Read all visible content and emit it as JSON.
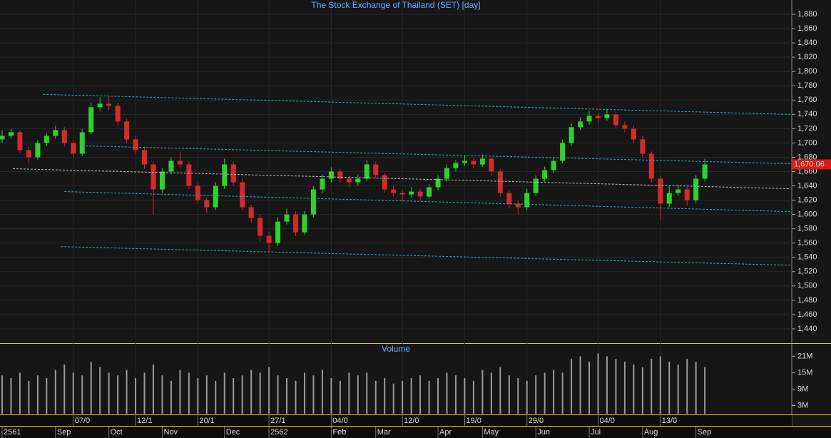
{
  "chart_data": {
    "type": "candlestick",
    "title": "The Stock Exchange of Thailand (SET) [day]",
    "volume_title": "Volume",
    "up_color": "#2fd12f",
    "down_color": "#d42a2a",
    "candles": [
      [
        1705,
        1718,
        1700,
        1710
      ],
      [
        1710,
        1720,
        1706,
        1715
      ],
      [
        1715,
        1718,
        1686,
        1690
      ],
      [
        1690,
        1694,
        1672,
        1680
      ],
      [
        1680,
        1704,
        1677,
        1700
      ],
      [
        1700,
        1714,
        1696,
        1710
      ],
      [
        1710,
        1724,
        1706,
        1718
      ],
      [
        1718,
        1722,
        1695,
        1700
      ],
      [
        1700,
        1704,
        1680,
        1685
      ],
      [
        1685,
        1720,
        1682,
        1715
      ],
      [
        1715,
        1756,
        1712,
        1750
      ],
      [
        1750,
        1764,
        1745,
        1755
      ],
      [
        1755,
        1765,
        1746,
        1752
      ],
      [
        1752,
        1756,
        1725,
        1730
      ],
      [
        1730,
        1734,
        1700,
        1705
      ],
      [
        1705,
        1710,
        1685,
        1690
      ],
      [
        1690,
        1694,
        1664,
        1670
      ],
      [
        1670,
        1674,
        1600,
        1635
      ],
      [
        1635,
        1665,
        1630,
        1660
      ],
      [
        1660,
        1680,
        1656,
        1675
      ],
      [
        1675,
        1688,
        1665,
        1670
      ],
      [
        1670,
        1674,
        1636,
        1640
      ],
      [
        1640,
        1644,
        1615,
        1620
      ],
      [
        1620,
        1624,
        1602,
        1610
      ],
      [
        1610,
        1645,
        1606,
        1640
      ],
      [
        1640,
        1678,
        1636,
        1670
      ],
      [
        1670,
        1674,
        1640,
        1645
      ],
      [
        1645,
        1650,
        1605,
        1610
      ],
      [
        1610,
        1614,
        1588,
        1595
      ],
      [
        1595,
        1600,
        1562,
        1570
      ],
      [
        1570,
        1576,
        1548,
        1560
      ],
      [
        1560,
        1596,
        1556,
        1590
      ],
      [
        1590,
        1608,
        1586,
        1600
      ],
      [
        1600,
        1604,
        1570,
        1575
      ],
      [
        1575,
        1605,
        1571,
        1600
      ],
      [
        1600,
        1640,
        1596,
        1635
      ],
      [
        1635,
        1656,
        1630,
        1650
      ],
      [
        1650,
        1666,
        1645,
        1660
      ],
      [
        1660,
        1664,
        1645,
        1650
      ],
      [
        1650,
        1654,
        1638,
        1645
      ],
      [
        1645,
        1656,
        1640,
        1650
      ],
      [
        1650,
        1676,
        1646,
        1670
      ],
      [
        1670,
        1674,
        1650,
        1655
      ],
      [
        1655,
        1658,
        1630,
        1635
      ],
      [
        1635,
        1640,
        1625,
        1630
      ],
      [
        1630,
        1634,
        1618,
        1628
      ],
      [
        1628,
        1638,
        1624,
        1632
      ],
      [
        1632,
        1636,
        1620,
        1625
      ],
      [
        1625,
        1642,
        1622,
        1638
      ],
      [
        1638,
        1655,
        1634,
        1650
      ],
      [
        1650,
        1670,
        1646,
        1665
      ],
      [
        1665,
        1676,
        1660,
        1672
      ],
      [
        1672,
        1682,
        1668,
        1675
      ],
      [
        1675,
        1679,
        1665,
        1670
      ],
      [
        1670,
        1684,
        1666,
        1678
      ],
      [
        1678,
        1680,
        1655,
        1660
      ],
      [
        1660,
        1664,
        1625,
        1630
      ],
      [
        1630,
        1634,
        1608,
        1615
      ],
      [
        1615,
        1620,
        1600,
        1610
      ],
      [
        1610,
        1636,
        1606,
        1630
      ],
      [
        1630,
        1655,
        1626,
        1650
      ],
      [
        1650,
        1667,
        1646,
        1662
      ],
      [
        1662,
        1680,
        1658,
        1675
      ],
      [
        1675,
        1705,
        1672,
        1700
      ],
      [
        1700,
        1727,
        1696,
        1722
      ],
      [
        1722,
        1736,
        1718,
        1730
      ],
      [
        1730,
        1745,
        1726,
        1738
      ],
      [
        1738,
        1742,
        1728,
        1735
      ],
      [
        1735,
        1748,
        1731,
        1740
      ],
      [
        1740,
        1744,
        1720,
        1725
      ],
      [
        1725,
        1730,
        1715,
        1720
      ],
      [
        1720,
        1724,
        1700,
        1705
      ],
      [
        1705,
        1710,
        1680,
        1685
      ],
      [
        1685,
        1688,
        1645,
        1650
      ],
      [
        1650,
        1654,
        1592,
        1615
      ],
      [
        1615,
        1640,
        1610,
        1630
      ],
      [
        1630,
        1642,
        1626,
        1635
      ],
      [
        1635,
        1638,
        1612,
        1620
      ],
      [
        1620,
        1655,
        1616,
        1650
      ],
      [
        1650,
        1678,
        1646,
        1670.06
      ]
    ],
    "date_labels": [
      null,
      null,
      null,
      null,
      null,
      null,
      null,
      null,
      "07/0",
      null,
      null,
      null,
      null,
      null,
      null,
      "12/1",
      null,
      null,
      null,
      null,
      null,
      null,
      "20/1",
      null,
      null,
      null,
      null,
      null,
      null,
      null,
      "27/1",
      null,
      null,
      null,
      null,
      null,
      null,
      "04/0",
      null,
      null,
      null,
      null,
      null,
      null,
      null,
      "12/0",
      null,
      null,
      null,
      null,
      null,
      null,
      "19/0",
      null,
      null,
      null,
      null,
      null,
      null,
      "29/0",
      null,
      null,
      null,
      null,
      null,
      null,
      null,
      "04/0",
      null,
      null,
      null,
      null,
      null,
      null,
      "13/0",
      null,
      null,
      null,
      null,
      null
    ],
    "month_labels": [
      "2561",
      null,
      null,
      null,
      null,
      null,
      "Sep",
      null,
      null,
      null,
      null,
      null,
      "Oct",
      null,
      null,
      null,
      null,
      null,
      "Nov",
      null,
      null,
      null,
      null,
      null,
      null,
      "Dec",
      null,
      null,
      null,
      null,
      "2562",
      null,
      null,
      null,
      null,
      null,
      null,
      "Feb",
      null,
      null,
      null,
      null,
      "Mar",
      null,
      null,
      null,
      null,
      null,
      null,
      "Apr",
      null,
      null,
      null,
      null,
      "May",
      null,
      null,
      null,
      null,
      null,
      "Jun",
      null,
      null,
      null,
      null,
      null,
      "Jul",
      null,
      null,
      null,
      null,
      null,
      "Aug",
      null,
      null,
      null,
      null,
      null,
      "Sep",
      null
    ],
    "ylim": [
      1420,
      1900
    ],
    "yticks": [
      {
        "value": 1440,
        "label": "1,440"
      },
      {
        "value": 1460,
        "label": "1,460"
      },
      {
        "value": 1480,
        "label": "1,480"
      },
      {
        "value": 1500,
        "label": "1,500"
      },
      {
        "value": 1520,
        "label": "1,520"
      },
      {
        "value": 1540,
        "label": "1,540"
      },
      {
        "value": 1560,
        "label": "1,560"
      },
      {
        "value": 1580,
        "label": "1,580"
      },
      {
        "value": 1600,
        "label": "1,600"
      },
      {
        "value": 1620,
        "label": "1,620"
      },
      {
        "value": 1640,
        "label": "1,640"
      },
      {
        "value": 1660,
        "label": "1,660"
      },
      {
        "value": 1680,
        "label": "1,680"
      },
      {
        "value": 1700,
        "label": "1,700"
      },
      {
        "value": 1720,
        "label": "1,720"
      },
      {
        "value": 1740,
        "label": "1,740"
      },
      {
        "value": 1760,
        "label": "1,760"
      },
      {
        "value": 1780,
        "label": "1,780"
      },
      {
        "value": 1800,
        "label": "1,800"
      },
      {
        "value": 1820,
        "label": "1,820"
      },
      {
        "value": 1840,
        "label": "1,840"
      },
      {
        "value": 1860,
        "label": "1,860"
      },
      {
        "value": 1880,
        "label": "1,880"
      }
    ],
    "last_price_label": "1,670.06",
    "volume": {
      "color": "#9a9a9a",
      "values": [
        14,
        13,
        15,
        12,
        14,
        13,
        16,
        18,
        15,
        14,
        19,
        17,
        15,
        14,
        16,
        13,
        15,
        18,
        14,
        12,
        16,
        15,
        13,
        14,
        12,
        15,
        13,
        14,
        16,
        15,
        17,
        14,
        13,
        12,
        15,
        14,
        16,
        13,
        12,
        15,
        14,
        15,
        12,
        13,
        11,
        12,
        13,
        14,
        12,
        13,
        15,
        14,
        13,
        12,
        16,
        15,
        17,
        14,
        13,
        12,
        14,
        15,
        16,
        15,
        20,
        21,
        19,
        22,
        21,
        20,
        19,
        18,
        17,
        20,
        21,
        19,
        18,
        20,
        19,
        17
      ],
      "ylim": [
        0,
        25
      ],
      "yticks": [
        {
          "value": 3,
          "label": "3M"
        },
        {
          "value": 9,
          "label": "9M"
        },
        {
          "value": 15,
          "label": "15M"
        },
        {
          "value": 21,
          "label": "21M"
        }
      ]
    },
    "channel_lines": [
      {
        "color": "#2aa6b8",
        "from": [
          4.6,
          1768
        ],
        "to": [
          88.6,
          1740
        ]
      },
      {
        "color": "#2aa6b8",
        "from": [
          9,
          1696
        ],
        "to": [
          88.6,
          1671
        ]
      },
      {
        "color": "#bbbbbb",
        "from": [
          1.2,
          1664
        ],
        "to": [
          88.6,
          1636
        ]
      },
      {
        "color": "#2aa6b8",
        "from": [
          7,
          1632
        ],
        "to": [
          88.6,
          1604
        ]
      },
      {
        "color": "#2aa6b8",
        "from": [
          6.6,
          1555
        ],
        "to": [
          88.6,
          1529
        ]
      }
    ],
    "grid": true
  }
}
